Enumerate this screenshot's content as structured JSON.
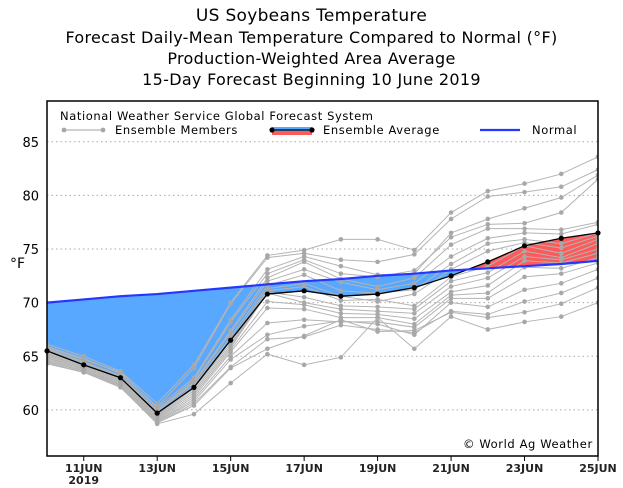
{
  "chart_data": {
    "type": "line",
    "title": "US Soybeans Temperature",
    "subtitles": [
      "Forecast Daily-Mean Temperature Compared to Normal (°F)",
      "Production-Weighted Area Average",
      "15-Day Forecast Beginning 10 June 2019"
    ],
    "legend_title": "National Weather Service Global Forecast System",
    "legend": [
      "Ensemble Members",
      "Ensemble Average",
      "Normal"
    ],
    "legend_placement": "top",
    "ylabel": "°F",
    "xlabel": "",
    "ylim": [
      55.7,
      88.8
    ],
    "xlim": [
      10,
      25
    ],
    "yticks": [
      60,
      65,
      70,
      75,
      80,
      85
    ],
    "xticks": [
      {
        "day": 11,
        "label": "11JUN",
        "sublabel": "2019"
      },
      {
        "day": 13,
        "label": "13JUN"
      },
      {
        "day": 15,
        "label": "15JUN"
      },
      {
        "day": 17,
        "label": "17JUN"
      },
      {
        "day": 19,
        "label": "19JUN"
      },
      {
        "day": 21,
        "label": "21JUN"
      },
      {
        "day": 23,
        "label": "23JUN"
      },
      {
        "day": 25,
        "label": "25JUN"
      }
    ],
    "grid": "horizontal dotted",
    "x": [
      10,
      11,
      12,
      13,
      14,
      15,
      16,
      17,
      18,
      19,
      20,
      21,
      22,
      23,
      24,
      25
    ],
    "ensemble_average": [
      65.5,
      64.2,
      63.0,
      59.7,
      62.1,
      66.5,
      70.8,
      71.1,
      70.6,
      70.8,
      71.4,
      72.5,
      73.8,
      75.3,
      76.0,
      76.5
    ],
    "normal": [
      70.0,
      70.3,
      70.6,
      70.8,
      71.1,
      71.4,
      71.7,
      72.0,
      72.2,
      72.5,
      72.7,
      73.0,
      73.2,
      73.4,
      73.6,
      73.9
    ],
    "ensemble_members": [
      [
        66.1,
        65.0,
        63.6,
        60.6,
        64.2,
        70.0,
        74.4,
        74.9,
        75.9,
        75.9,
        74.9,
        78.4,
        80.4,
        81.1,
        82.0,
        83.6
      ],
      [
        65.9,
        64.8,
        63.4,
        60.3,
        63.9,
        69.9,
        74.2,
        74.6,
        74.0,
        73.8,
        74.5,
        77.8,
        79.9,
        80.3,
        80.8,
        82.4
      ],
      [
        65.8,
        64.7,
        63.5,
        60.2,
        63.0,
        68.4,
        73.1,
        74.3,
        73.4,
        72.6,
        72.7,
        76.5,
        77.8,
        78.8,
        79.8,
        81.9
      ],
      [
        65.7,
        64.5,
        63.2,
        60.0,
        62.8,
        68.2,
        72.7,
        74.0,
        72.7,
        72.4,
        73.0,
        76.1,
        77.3,
        77.4,
        78.4,
        81.5
      ],
      [
        65.6,
        64.4,
        63.1,
        59.9,
        62.6,
        67.4,
        72.3,
        73.8,
        72.2,
        71.5,
        72.3,
        75.4,
        76.9,
        76.9,
        76.8,
        77.5
      ],
      [
        65.5,
        64.3,
        63.0,
        59.8,
        62.5,
        67.2,
        72.0,
        73.1,
        71.9,
        71.2,
        71.8,
        74.3,
        76.0,
        76.5,
        76.4,
        77.3
      ],
      [
        65.4,
        64.2,
        62.9,
        59.6,
        62.3,
        66.8,
        71.6,
        72.6,
        71.1,
        70.9,
        71.2,
        73.6,
        75.5,
        75.9,
        75.5,
        76.5
      ],
      [
        65.3,
        64.1,
        62.8,
        59.5,
        62.2,
        66.5,
        71.3,
        71.8,
        70.6,
        70.1,
        70.8,
        73.1,
        74.8,
        75.6,
        75.1,
        76.2
      ],
      [
        65.2,
        64.0,
        62.7,
        59.4,
        62.0,
        66.2,
        71.1,
        71.5,
        70.2,
        70.3,
        69.7,
        72.4,
        73.4,
        75.3,
        74.6,
        75.9
      ],
      [
        65.1,
        64.0,
        62.6,
        59.3,
        61.8,
        66.0,
        71.0,
        70.5,
        69.7,
        69.6,
        69.4,
        72.0,
        72.8,
        74.8,
        74.2,
        75.5
      ],
      [
        65.0,
        63.9,
        62.5,
        59.2,
        61.6,
        65.8,
        70.9,
        70.0,
        69.4,
        69.2,
        69.0,
        71.5,
        72.3,
        74.3,
        74.0,
        75.0
      ],
      [
        64.9,
        63.8,
        62.4,
        59.1,
        61.4,
        65.6,
        70.1,
        69.8,
        69.0,
        68.9,
        68.5,
        71.0,
        71.6,
        73.9,
        73.7,
        74.6
      ],
      [
        64.8,
        63.8,
        62.4,
        59.0,
        61.2,
        65.4,
        69.5,
        69.4,
        68.6,
        68.6,
        68.0,
        70.7,
        70.9,
        73.3,
        73.2,
        74.2
      ],
      [
        64.7,
        63.7,
        62.3,
        58.9,
        61.0,
        65.0,
        68.1,
        68.4,
        68.2,
        68.2,
        67.7,
        70.4,
        70.4,
        72.4,
        72.7,
        73.7
      ],
      [
        64.6,
        63.6,
        62.3,
        58.9,
        60.8,
        64.7,
        67.0,
        67.8,
        68.3,
        68.0,
        67.0,
        70.0,
        69.6,
        71.2,
        71.8,
        73.1
      ],
      [
        64.5,
        63.6,
        62.2,
        58.8,
        60.6,
        64.0,
        66.6,
        66.8,
        67.9,
        67.5,
        67.2,
        69.2,
        68.9,
        70.1,
        70.9,
        72.3
      ],
      [
        64.4,
        63.5,
        62.2,
        58.8,
        60.4,
        63.9,
        65.7,
        66.9,
        68.4,
        67.3,
        67.4,
        69.1,
        68.6,
        69.1,
        69.9,
        71.4
      ],
      [
        64.3,
        63.5,
        62.1,
        58.7,
        59.6,
        62.5,
        65.2,
        64.2,
        64.9,
        68.6,
        65.7,
        68.7,
        67.5,
        68.2,
        68.7,
        70.0
      ]
    ],
    "credit": "© World Ag Weather"
  },
  "colors": {
    "below_normal_fill": "#58a8ff",
    "above_normal_fill": "#ff5a5a",
    "normal_line": "#2536ff",
    "members": "#b4b4b4",
    "average": "#000000"
  }
}
